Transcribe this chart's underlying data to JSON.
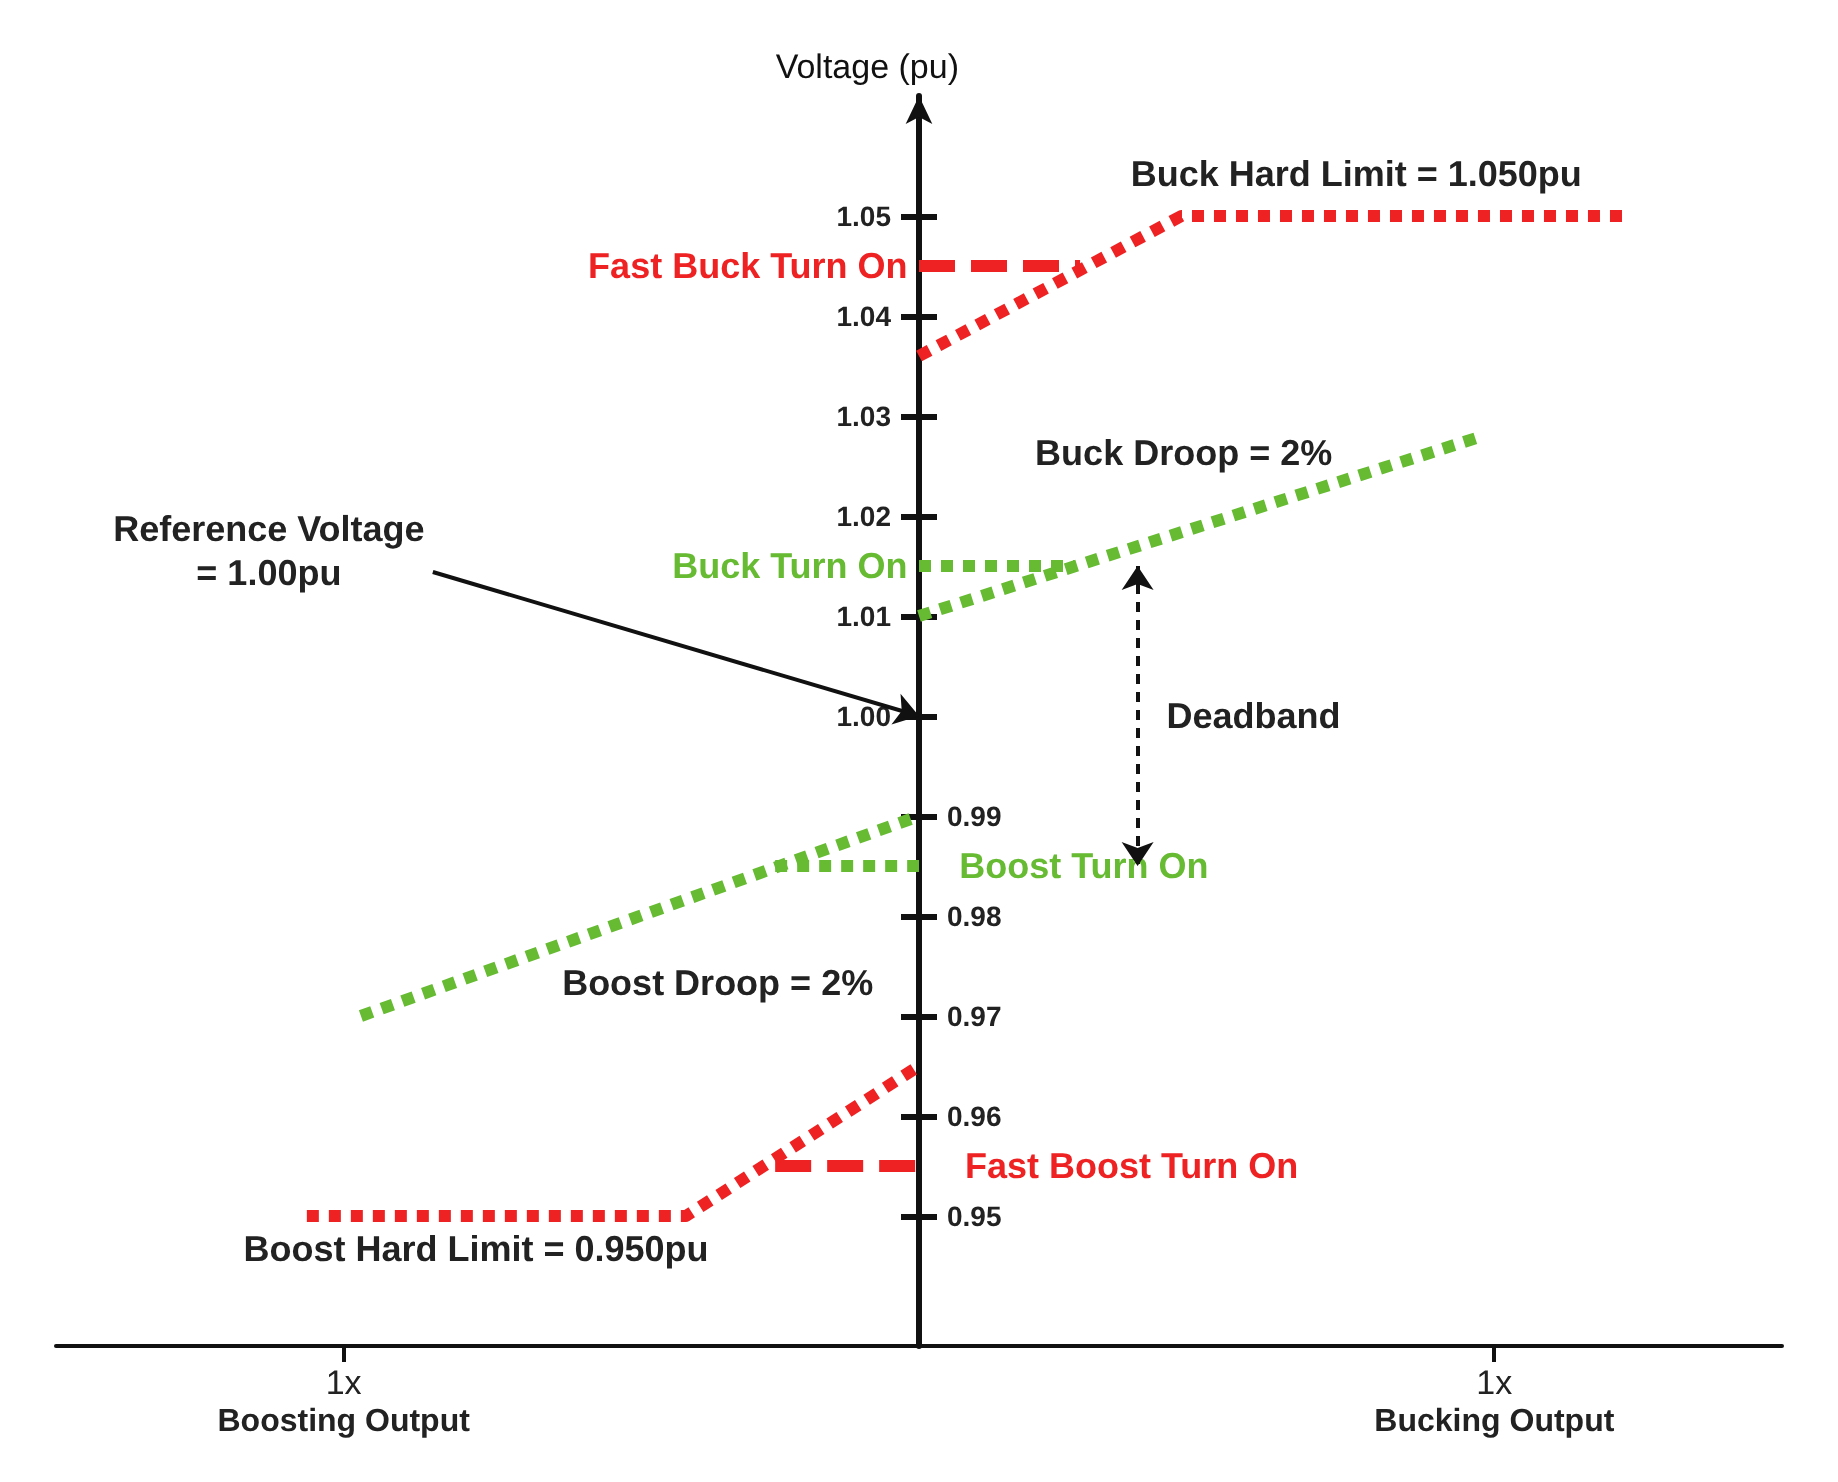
{
  "chart_data": {
    "type": "line",
    "ylabel": "Voltage (pu)",
    "xlim": [
      -1.5,
      1.5
    ],
    "xticks": [
      {
        "value": -1,
        "label": "1x"
      },
      {
        "value": 1,
        "label": "1x"
      }
    ],
    "ylim": [
      0.937,
      1.062
    ],
    "yticks": [
      {
        "value": 0.95,
        "label": null
      },
      {
        "value": 0.96,
        "label": null
      },
      {
        "value": 0.97,
        "label": null
      },
      {
        "value": 0.98,
        "label": null
      },
      {
        "value": 0.99,
        "label": null
      },
      {
        "value": 1,
        "label": "1.00"
      },
      1.01,
      1.02,
      1.03,
      1.04,
      1.05
    ],
    "y2lim": [
      0.937,
      1.062
    ],
    "y2ticks": [
      0.95,
      0.96,
      0.97,
      0.98,
      0.99,
      {
        "value": 1,
        "label": null
      },
      {
        "value": 1.01,
        "label": null
      },
      {
        "value": 1.02,
        "label": null
      },
      {
        "value": 1.03,
        "label": null
      },
      {
        "value": 1.04,
        "label": null
      },
      {
        "value": 1.05,
        "label": null
      }
    ],
    "grid": false,
    "legend": false,
    "marker": "none",
    "series": [
      {
        "name": "Buck Hard Limit = 1.050pu",
        "color": "#ee2222",
        "line_style": "dotted",
        "x": [
          0,
          0.456,
          1.23
        ],
        "values": [
          1.036,
          1.05,
          1.05
        ]
      },
      {
        "name": "Fast Buck Turn On",
        "color": "#ee2222",
        "line_style": "dashed",
        "x": [
          0,
          0.28
        ],
        "values": [
          1.045,
          1.045
        ]
      },
      {
        "name": "Buck Droop = 2%",
        "color": "#66bb33",
        "line_style": "dotted",
        "x": [
          0,
          0.98
        ],
        "values": [
          1.01,
          1.028
        ]
      },
      {
        "name": "Buck Turn On",
        "color": "#66bb33",
        "line_style": "dotted",
        "x": [
          0,
          0.27
        ],
        "values": [
          1.015,
          1.015
        ]
      },
      {
        "name": "Boost Turn On",
        "color": "#66bb33",
        "line_style": "dotted",
        "x": [
          -0.25,
          0
        ],
        "values": [
          0.985,
          0.985
        ]
      },
      {
        "name": "Boost Droop = 2%",
        "color": "#66bb33",
        "line_style": "dotted",
        "x": [
          -0.97,
          0
        ],
        "values": [
          0.97,
          0.99
        ]
      },
      {
        "name": "Fast Boost Turn On",
        "color": "#ee2222",
        "line_style": "dashed",
        "x": [
          -0.25,
          0
        ],
        "values": [
          0.955,
          0.955
        ]
      },
      {
        "name": "Boost Hard Limit = 0.950pu",
        "color": "#ee2222",
        "line_style": "dotted",
        "x": [
          -1.064,
          -0.405,
          0
        ],
        "values": [
          0.95,
          0.95,
          0.965
        ]
      }
    ],
    "annotations": [
      "Reference Voltage\n= 1.00pu",
      "Deadband",
      "Boosting Output",
      "Bucking Output"
    ]
  }
}
